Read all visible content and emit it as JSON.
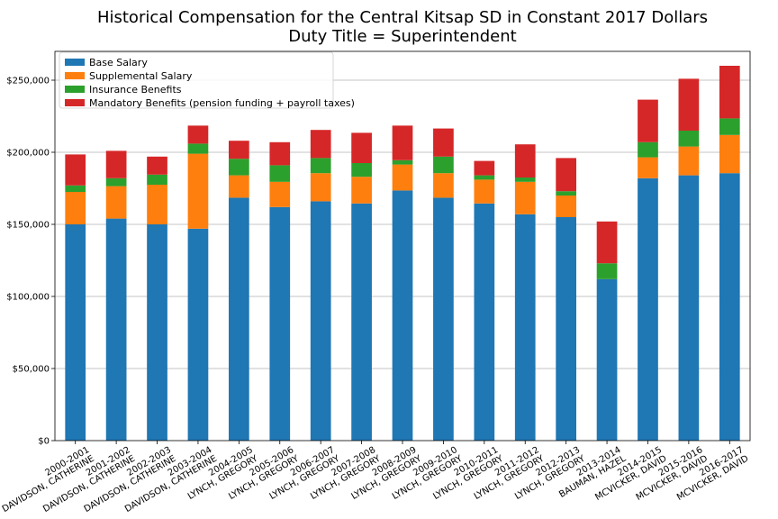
{
  "chart_data": {
    "type": "bar",
    "stacked": true,
    "title": "Historical Compensation for the Central Kitsap SD in Constant 2017 Dollars",
    "subtitle": "Duty Title = Superintendent",
    "xlabel": "",
    "ylabel": "",
    "ylim": [
      0,
      270000
    ],
    "yticks": [
      0,
      50000,
      100000,
      150000,
      200000,
      250000
    ],
    "ytick_labels": [
      "$0",
      "$50,000",
      "$100,000",
      "$150,000",
      "$200,000",
      "$250,000"
    ],
    "grid": "horizontal",
    "legend_position": "top-left",
    "categories": [
      [
        "2000-2001",
        "DAVIDSON, CATHERINE"
      ],
      [
        "2001-2002",
        "DAVIDSON, CATHERINE"
      ],
      [
        "2002-2003",
        "DAVIDSON, CATHERINE"
      ],
      [
        "2003-2004",
        "DAVIDSON, CATHERINE"
      ],
      [
        "2004-2005",
        "LYNCH, GREGORY"
      ],
      [
        "2005-2006",
        "LYNCH, GREGORY"
      ],
      [
        "2006-2007",
        "LYNCH, GREGORY"
      ],
      [
        "2007-2008",
        "LYNCH, GREGORY"
      ],
      [
        "2008-2009",
        "LYNCH, GREGORY"
      ],
      [
        "2009-2010",
        "LYNCH, GREGORY"
      ],
      [
        "2010-2011",
        "LYNCH, GREGORY"
      ],
      [
        "2011-2012",
        "LYNCH, GREGORY"
      ],
      [
        "2012-2013",
        "LYNCH, GREGORY"
      ],
      [
        "2013-2014",
        "BAUMAN, HAZEL"
      ],
      [
        "2014-2015",
        "MCVICKER, DAVID"
      ],
      [
        "2015-2016",
        "MCVICKER, DAVID"
      ],
      [
        "2016-2017",
        "MCVICKER, DAVID"
      ]
    ],
    "series": [
      {
        "name": "Base Salary",
        "color": "#1f77b4",
        "values": [
          150000,
          154000,
          150000,
          147000,
          168500,
          162000,
          166000,
          164500,
          173500,
          168500,
          164500,
          157000,
          155000,
          112000,
          182000,
          184000,
          185500
        ]
      },
      {
        "name": "Supplemental Salary",
        "color": "#ff7f0e",
        "values": [
          22500,
          22500,
          27500,
          52000,
          15500,
          17500,
          19500,
          18500,
          18000,
          17000,
          16500,
          22500,
          15000,
          0,
          14500,
          20000,
          26500
        ]
      },
      {
        "name": "Insurance Benefits",
        "color": "#2ca02c",
        "values": [
          4500,
          5500,
          7000,
          7000,
          11500,
          11500,
          10500,
          9500,
          3000,
          11500,
          3000,
          3000,
          3000,
          11000,
          10500,
          11000,
          11500
        ]
      },
      {
        "name": "Mandatory Benefits (pension funding + payroll taxes)",
        "color": "#d62728",
        "values": [
          21500,
          19000,
          12500,
          12500,
          12500,
          16000,
          19500,
          21000,
          24000,
          19500,
          10000,
          23000,
          23000,
          29000,
          29500,
          36000,
          36500
        ]
      }
    ]
  }
}
